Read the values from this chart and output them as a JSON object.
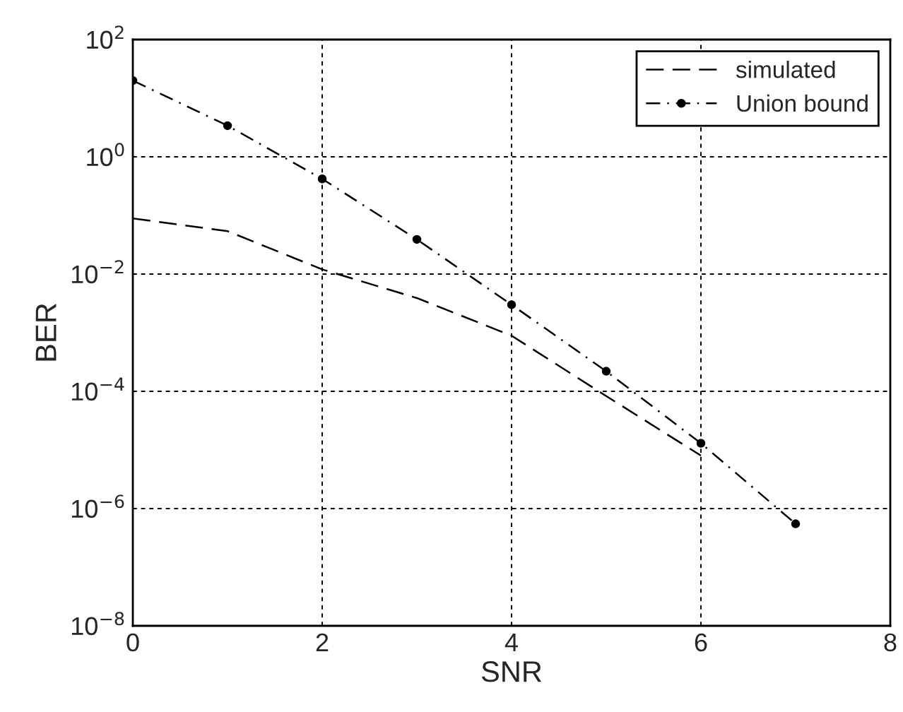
{
  "chart_data": {
    "type": "line",
    "xlabel": "SNR",
    "ylabel": "BER",
    "log": "y",
    "x": [
      0,
      1,
      2,
      3,
      4,
      5,
      6,
      7
    ],
    "series": [
      {
        "name": "simulated",
        "color": "#000000",
        "line_style": "dashed",
        "marker": "none",
        "values": [
          0.089,
          0.054,
          0.012,
          0.0039,
          0.00089,
          8.3e-05,
          8e-06,
          null
        ]
      },
      {
        "name": "Union bound",
        "color": "#000000",
        "line_style": "dashdot",
        "marker": "circle",
        "values": [
          20,
          3.4,
          0.42,
          0.039,
          0.003,
          0.00022,
          1.3e-05,
          5.5e-07
        ]
      }
    ],
    "xlim": [
      0,
      8
    ],
    "xticks": [
      0,
      2,
      4,
      6,
      8
    ],
    "ylim": [
      1e-08,
      100
    ],
    "yticks": [
      {
        "value": 1e-08,
        "label": "10$^{−8}$"
      },
      {
        "value": 1e-06,
        "label": "10$^{−6}$"
      },
      {
        "value": 0.0001,
        "label": "10$^{−4}$"
      },
      {
        "value": 0.01,
        "label": "10$^{−2}$"
      },
      {
        "value": 1,
        "label": "10$^{0}$"
      },
      {
        "value": 100,
        "label": "10$^{2}$"
      }
    ],
    "grid": true,
    "legend": "top right"
  }
}
